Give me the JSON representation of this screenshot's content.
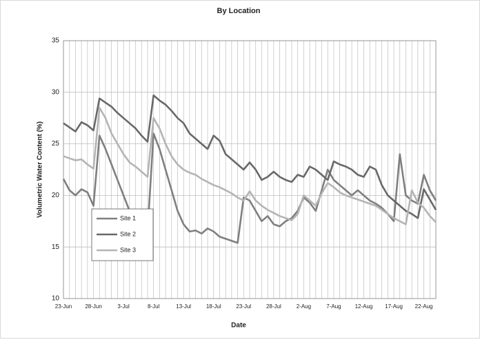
{
  "chart_data": {
    "type": "line",
    "title": "By Location",
    "xlabel": "Date",
    "ylabel": "Volumetric Water Content (%)",
    "categories": [
      "23-Jun",
      null,
      null,
      null,
      null,
      "28-Jun",
      null,
      null,
      null,
      null,
      "3-Jul",
      null,
      null,
      null,
      null,
      "8-Jul",
      null,
      null,
      null,
      null,
      "13-Jul",
      null,
      null,
      null,
      null,
      "18-Jul",
      null,
      null,
      null,
      null,
      "23-Jul",
      null,
      null,
      null,
      null,
      "28-Jul",
      null,
      null,
      null,
      null,
      "2-Aug",
      null,
      null,
      null,
      null,
      "7-Aug",
      null,
      null,
      null,
      null,
      "12-Aug",
      null,
      null,
      null,
      null,
      "17-Aug",
      null,
      null,
      null,
      null,
      "22-Aug",
      null,
      null
    ],
    "series": [
      {
        "name": "Site 1",
        "color": "#7f7f7f",
        "values": [
          21.6,
          20.5,
          20,
          20.6,
          20.3,
          19,
          25.8,
          24.5,
          23,
          21.5,
          20,
          18.5,
          17.5,
          17,
          16.5,
          26,
          24.5,
          22.5,
          20.5,
          18.5,
          17.2,
          16.5,
          16.6,
          16.3,
          16.8,
          16.5,
          16,
          15.8,
          15.6,
          15.4,
          19.8,
          19.5,
          18.5,
          17.5,
          18,
          17.2,
          17,
          17.5,
          17.8,
          18.5,
          19.8,
          19.3,
          18.5,
          20.5,
          22.5,
          21.5,
          21,
          20.5,
          20,
          20.5,
          20,
          19.5,
          19.2,
          18.8,
          18.2,
          17.5,
          24,
          20,
          19.5,
          19.2,
          22,
          20.5,
          19.5
        ]
      },
      {
        "name": "Site 2",
        "color": "#686868",
        "values": [
          27,
          26.6,
          26.2,
          27.1,
          26.8,
          26.3,
          29.4,
          29,
          28.6,
          28,
          27.5,
          27,
          26.5,
          25.8,
          25.2,
          29.7,
          29.2,
          28.8,
          28.2,
          27.5,
          27,
          26,
          25.5,
          25,
          24.5,
          25.8,
          25.3,
          24,
          23.5,
          23,
          22.5,
          23.2,
          22.5,
          21.5,
          21.8,
          22.3,
          21.8,
          21.5,
          21.3,
          22,
          21.8,
          22.8,
          22.5,
          22,
          21.5,
          23.3,
          23,
          22.8,
          22.5,
          22,
          21.8,
          22.8,
          22.5,
          21,
          20,
          19.5,
          19,
          18.5,
          18.2,
          17.8,
          20.6,
          19.6,
          18.6
        ]
      },
      {
        "name": "Site 3",
        "color": "#b4b4b4",
        "values": [
          23.8,
          23.6,
          23.4,
          23.5,
          23,
          22.6,
          28.5,
          27.5,
          26,
          25,
          24,
          23.2,
          22.8,
          22.3,
          21.8,
          27.5,
          26.5,
          25,
          23.8,
          23,
          22.5,
          22.2,
          22,
          21.6,
          21.3,
          21,
          20.8,
          20.5,
          20.2,
          19.8,
          19.5,
          20.4,
          19.5,
          19,
          18.6,
          18.3,
          18,
          17.8,
          17.6,
          18.2,
          20,
          19.5,
          19,
          20.2,
          21.2,
          20.8,
          20.3,
          20,
          19.8,
          19.6,
          19.4,
          19.2,
          19,
          18.6,
          18.2,
          17.8,
          17.5,
          17.2,
          20.5,
          19.3,
          18.8,
          18,
          17.4
        ]
      }
    ],
    "ylim": [
      10,
      35
    ],
    "yticks": [
      10,
      15,
      20,
      25,
      30,
      35
    ],
    "grid": true
  }
}
